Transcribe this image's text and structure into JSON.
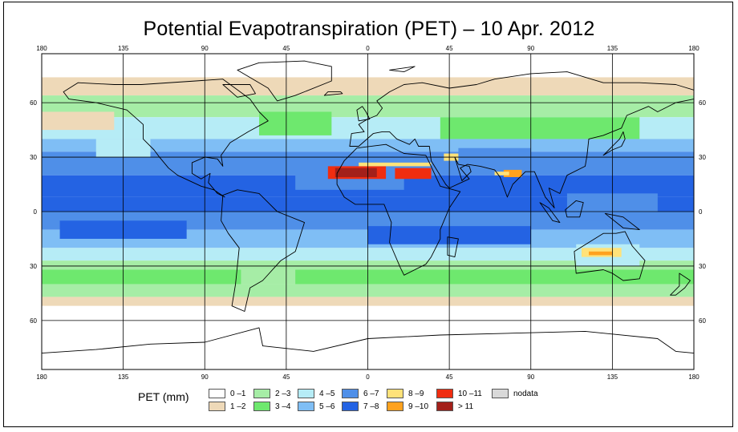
{
  "title": "Potential Evapotranspiration (PET) – 10 Apr. 2012",
  "legend": {
    "title": "PET (mm)",
    "nodata_label": "nodata",
    "nodata_color": "#d9d9d9",
    "classes": [
      {
        "label": "0 –1",
        "color": "#ffffff"
      },
      {
        "label": "1 –2",
        "color": "#eed9b8"
      },
      {
        "label": "2 –3",
        "color": "#a6eda6"
      },
      {
        "label": "3 –4",
        "color": "#6ee86e"
      },
      {
        "label": "4 –5",
        "color": "#b6ecf6"
      },
      {
        "label": "5 –6",
        "color": "#7fbef5"
      },
      {
        "label": "6 –7",
        "color": "#4f8fe8"
      },
      {
        "label": "7 –8",
        "color": "#2463e3"
      },
      {
        "label": "8 –9",
        "color": "#ffe27a"
      },
      {
        "label": "9 –10",
        "color": "#ffa21e"
      },
      {
        "label": "10 –11",
        "color": "#f02d10"
      },
      {
        "label": "> 11",
        "color": "#a3201a"
      }
    ]
  },
  "axes": {
    "lon_ticks": [
      "180",
      "135",
      "90",
      "45",
      "0",
      "45",
      "90",
      "135",
      "180"
    ],
    "lat_ticks": [
      "60",
      "30",
      "0",
      "30",
      "60"
    ]
  },
  "colors": {
    "ocean_polar": "#ffffff",
    "coast": "#000000",
    "gridline": "#000000"
  }
}
